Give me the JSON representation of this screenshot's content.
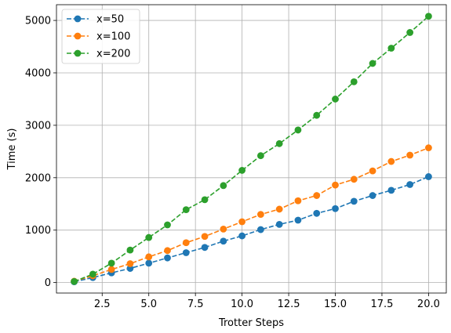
{
  "chart_data": {
    "type": "line",
    "title": "",
    "xlabel": "Trotter Steps",
    "ylabel": "Time (s)",
    "xlim": [
      0.05,
      20.95
    ],
    "ylim": [
      -200,
      5300
    ],
    "xticks": [
      2.5,
      5.0,
      7.5,
      10.0,
      12.5,
      15.0,
      17.5,
      20.0
    ],
    "xtick_labels": [
      "2.5",
      "5.0",
      "7.5",
      "10.0",
      "12.5",
      "15.0",
      "17.5",
      "20.0"
    ],
    "yticks": [
      0,
      1000,
      2000,
      3000,
      4000,
      5000
    ],
    "ytick_labels": [
      "0",
      "1000",
      "2000",
      "3000",
      "4000",
      "5000"
    ],
    "grid": true,
    "legend": "top-left",
    "x": [
      1,
      2,
      3,
      4,
      5,
      6,
      7,
      8,
      9,
      10,
      11,
      12,
      13,
      14,
      15,
      16,
      17,
      18,
      19,
      20
    ],
    "series": [
      {
        "name": "x=50",
        "color": "#1f77b4",
        "values": [
          15,
          95,
          185,
          270,
          370,
          470,
          570,
          670,
          790,
          890,
          1010,
          1110,
          1190,
          1320,
          1410,
          1550,
          1660,
          1760,
          1870,
          2020
        ]
      },
      {
        "name": "x=100",
        "color": "#ff7f0e",
        "values": [
          25,
          130,
          250,
          360,
          490,
          610,
          760,
          880,
          1020,
          1160,
          1300,
          1400,
          1560,
          1660,
          1860,
          1970,
          2130,
          2310,
          2430,
          2570
        ]
      },
      {
        "name": "x=200",
        "color": "#2ca02c",
        "values": [
          20,
          160,
          370,
          620,
          860,
          1100,
          1390,
          1580,
          1850,
          2140,
          2420,
          2650,
          2910,
          3190,
          3500,
          3830,
          4180,
          4470,
          4770,
          5080
        ]
      }
    ]
  }
}
